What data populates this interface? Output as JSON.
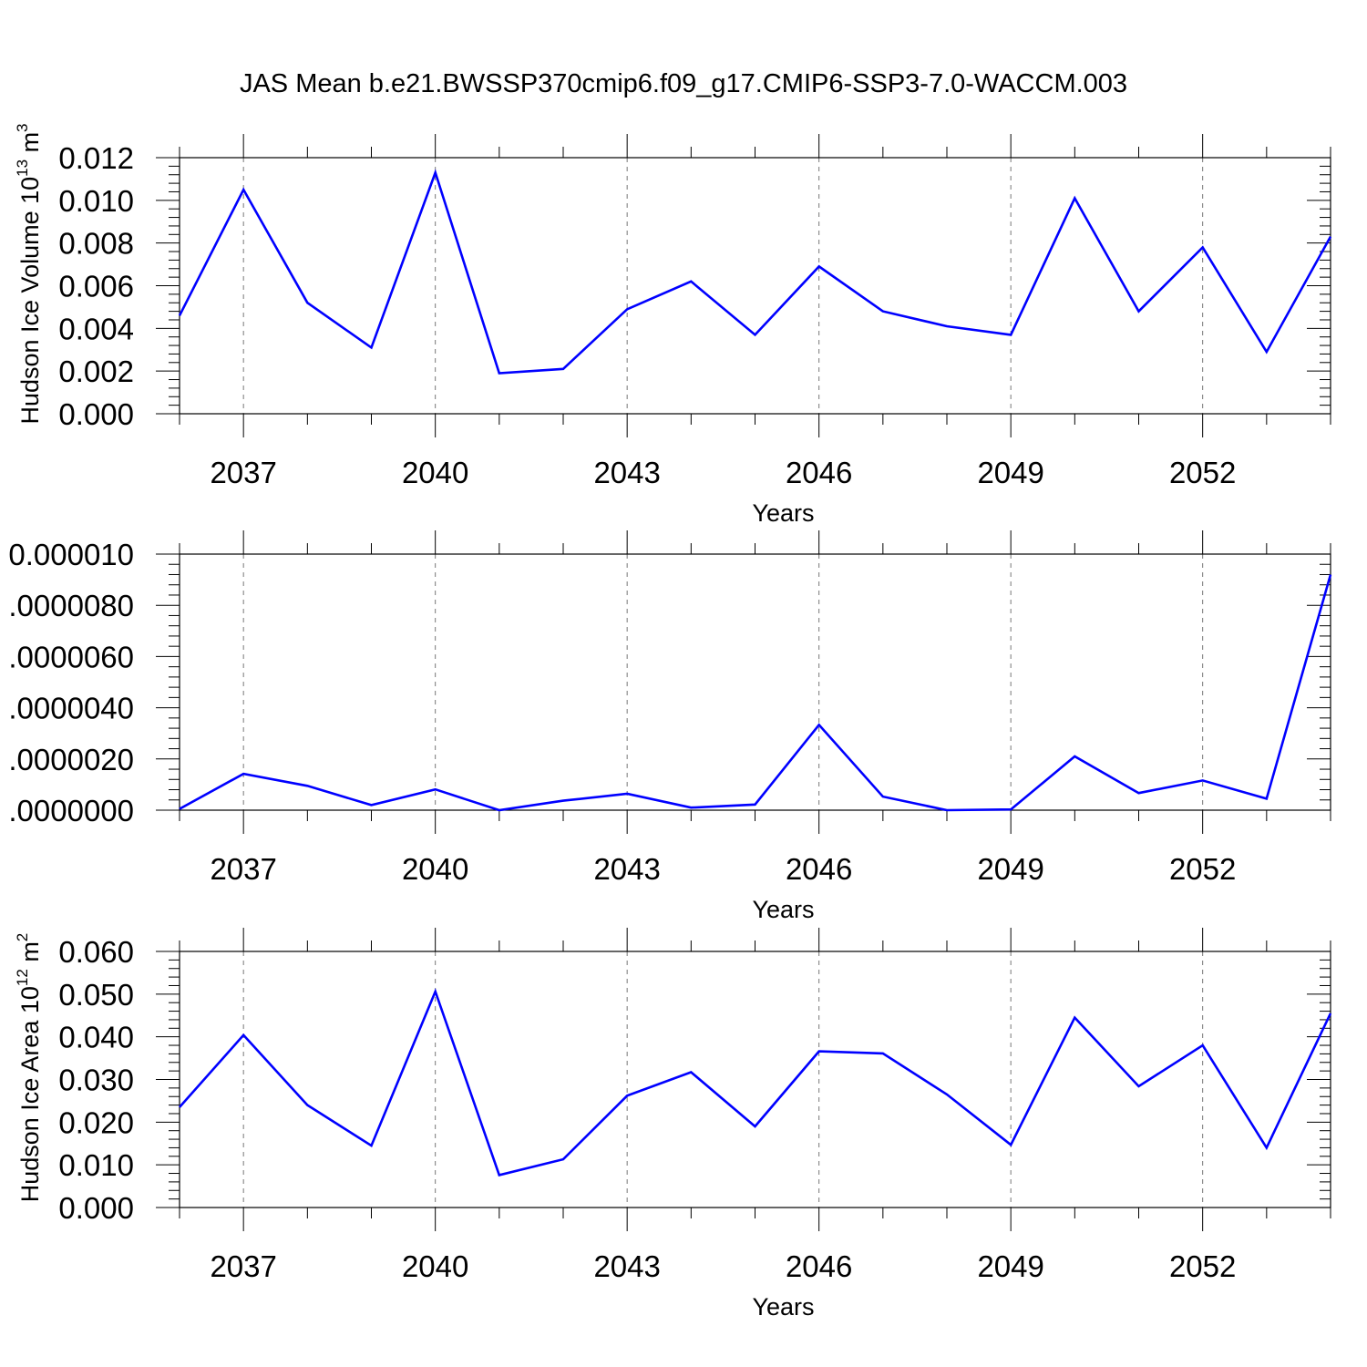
{
  "title": "JAS Mean b.e21.BWSSP370cmip6.f09_g17.CMIP6-SSP3-7.0-WACCM.003",
  "line_color": "#0000ff",
  "chart_data": [
    {
      "type": "line",
      "title": "JAS Mean b.e21.BWSSP370cmip6.f09_g17.CMIP6-SSP3-7.0-WACCM.003",
      "xlabel": "Years",
      "ylabel": "Hudson Ice Volume 10",
      "ylabel_sup": "13",
      "ylabel_unit": "m",
      "ylabel_unit_sup": "3",
      "xlim": [
        2036,
        2054
      ],
      "ylim": [
        0,
        0.012
      ],
      "xticks": [
        2037,
        2040,
        2043,
        2046,
        2049,
        2052
      ],
      "xtick_labels": [
        "2037",
        "2040",
        "2043",
        "2046",
        "2049",
        "2052"
      ],
      "yticks": [
        0,
        0.002,
        0.004,
        0.006,
        0.008,
        0.01,
        0.012
      ],
      "ytick_labels": [
        "0.000",
        "0.002",
        "0.004",
        "0.006",
        "0.008",
        "0.010",
        "0.012"
      ],
      "grid": "x-dashed",
      "x": [
        2036,
        2037,
        2038,
        2039,
        2040,
        2041,
        2042,
        2043,
        2044,
        2045,
        2046,
        2047,
        2048,
        2049,
        2050,
        2051,
        2052,
        2053,
        2054
      ],
      "y": [
        0.0046,
        0.0105,
        0.0052,
        0.0031,
        0.0113,
        0.0019,
        0.0021,
        0.0049,
        0.0062,
        0.0037,
        0.0069,
        0.0048,
        0.0041,
        0.0037,
        0.0101,
        0.0048,
        0.0078,
        0.0029,
        0.0083
      ]
    },
    {
      "type": "line",
      "xlabel": "Years",
      "ylabel": "",
      "xlim": [
        2036,
        2054
      ],
      "ylim": [
        0,
        1e-05
      ],
      "xticks": [
        2037,
        2040,
        2043,
        2046,
        2049,
        2052
      ],
      "xtick_labels": [
        "2037",
        "2040",
        "2043",
        "2046",
        "2049",
        "2052"
      ],
      "yticks": [
        0,
        2e-06,
        4e-06,
        6e-06,
        8e-06,
        1e-05
      ],
      "ytick_labels": [
        ".0000000",
        ".0000020",
        ".0000040",
        ".0000060",
        ".0000080",
        "0.000010"
      ],
      "grid": "x-dashed",
      "x": [
        2036,
        2037,
        2038,
        2039,
        2040,
        2041,
        2042,
        2043,
        2044,
        2045,
        2046,
        2047,
        2048,
        2049,
        2050,
        2051,
        2052,
        2053,
        2054
      ],
      "y": [
        5e-08,
        1.42e-06,
        9.5e-07,
        2e-07,
        8.1e-07,
        0.0,
        3.7e-07,
        6.4e-07,
        1e-07,
        2.2e-07,
        3.33e-06,
        5.3e-07,
        0.0,
        3e-08,
        2.1e-06,
        6.7e-07,
        1.16e-06,
        4.5e-07,
        9.2e-06
      ]
    },
    {
      "type": "line",
      "xlabel": "Years",
      "ylabel": "Hudson Ice Area 10",
      "ylabel_sup": "12",
      "ylabel_unit": "m",
      "ylabel_unit_sup": "2",
      "xlim": [
        2036,
        2054
      ],
      "ylim": [
        0,
        0.06
      ],
      "xticks": [
        2037,
        2040,
        2043,
        2046,
        2049,
        2052
      ],
      "xtick_labels": [
        "2037",
        "2040",
        "2043",
        "2046",
        "2049",
        "2052"
      ],
      "yticks": [
        0,
        0.01,
        0.02,
        0.03,
        0.04,
        0.05,
        0.06
      ],
      "ytick_labels": [
        "0.000",
        "0.010",
        "0.020",
        "0.030",
        "0.040",
        "0.050",
        "0.060"
      ],
      "grid": "x-dashed",
      "x": [
        2036,
        2037,
        2038,
        2039,
        2040,
        2041,
        2042,
        2043,
        2044,
        2045,
        2046,
        2047,
        2048,
        2049,
        2050,
        2051,
        2052,
        2053,
        2054
      ],
      "y": [
        0.0235,
        0.0404,
        0.024,
        0.0145,
        0.0506,
        0.0076,
        0.0113,
        0.0262,
        0.0317,
        0.019,
        0.0366,
        0.0361,
        0.0265,
        0.0147,
        0.0445,
        0.0284,
        0.038,
        0.014,
        0.0455
      ]
    }
  ]
}
